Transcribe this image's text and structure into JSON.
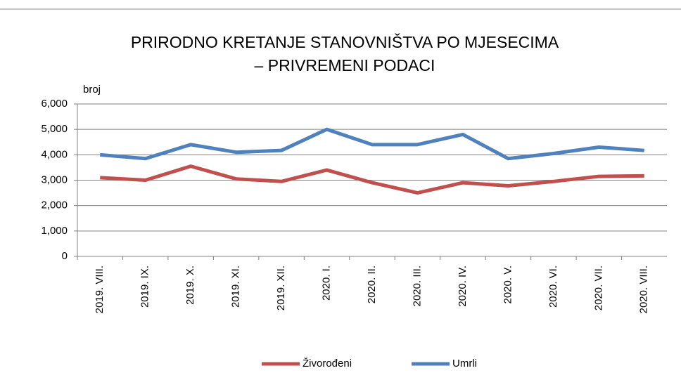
{
  "chart_data": {
    "type": "line",
    "title": [
      "PRIRODNO KRETANJE STANOVNIŠTVA PO MJESECIMA",
      "– PRIVREMENI PODACI"
    ],
    "y_label": "broj",
    "categories": [
      "2019. VIII.",
      "2019. IX.",
      "2019. X.",
      "2019. XI.",
      "2019. XII.",
      "2020. I.",
      "2020. II.",
      "2020. III.",
      "2020. IV.",
      "2020. V.",
      "2020. VI.",
      "2020. VII.",
      "2020. VIII."
    ],
    "series": [
      {
        "name": "Živorođeni",
        "color": "#c0504d",
        "values": [
          3100,
          3000,
          3550,
          3050,
          2950,
          3400,
          2900,
          2500,
          2900,
          2780,
          2950,
          3150,
          3170
        ]
      },
      {
        "name": "Umrli",
        "color": "#4f81bd",
        "values": [
          4000,
          3850,
          4400,
          4100,
          4170,
          5000,
          4400,
          4400,
          4800,
          3850,
          4050,
          4300,
          4170
        ]
      }
    ],
    "ylim": [
      0,
      6000
    ],
    "yticks": [
      0,
      {
        "value": 1000,
        "label": "1,000"
      },
      {
        "value": 2000,
        "label": "2,000"
      },
      {
        "value": 3000,
        "label": "3,000"
      },
      {
        "value": 4000,
        "label": "4,000"
      },
      {
        "value": 5000,
        "label": "5,000"
      },
      {
        "value": 6000,
        "label": "6,000"
      }
    ],
    "grid": true,
    "legend": "bottom"
  }
}
